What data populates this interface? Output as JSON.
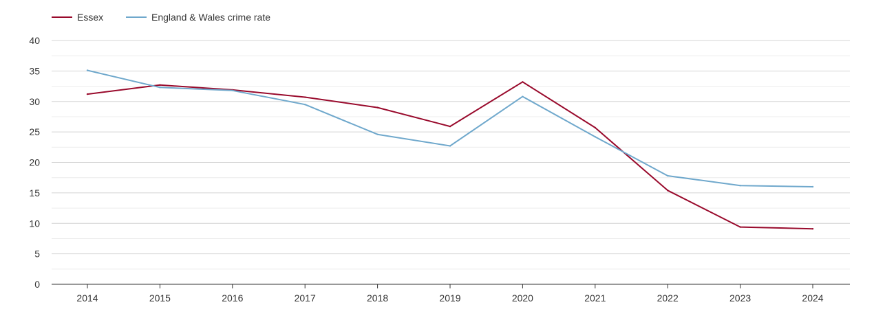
{
  "chart_data": {
    "type": "line",
    "title": "",
    "xlabel": "",
    "ylabel": "",
    "x": [
      "2014",
      "2015",
      "2016",
      "2017",
      "2018",
      "2019",
      "2020",
      "2021",
      "2022",
      "2023",
      "2024"
    ],
    "ylim": [
      0,
      40
    ],
    "yticks": [
      0,
      5,
      10,
      15,
      20,
      25,
      30,
      35,
      40
    ],
    "y_minor_step": 2.5,
    "grid": true,
    "legend_position": "top-left",
    "series": [
      {
        "name": "Essex",
        "color": "#990a2c",
        "values": [
          31.2,
          32.7,
          31.9,
          30.7,
          29.0,
          25.9,
          33.2,
          25.7,
          15.4,
          9.4,
          9.1
        ]
      },
      {
        "name": "England & Wales crime rate",
        "color": "#6fa8cc",
        "values": [
          35.1,
          32.3,
          31.8,
          29.5,
          24.6,
          22.7,
          30.8,
          24.2,
          17.8,
          16.2,
          16.0
        ]
      }
    ]
  }
}
